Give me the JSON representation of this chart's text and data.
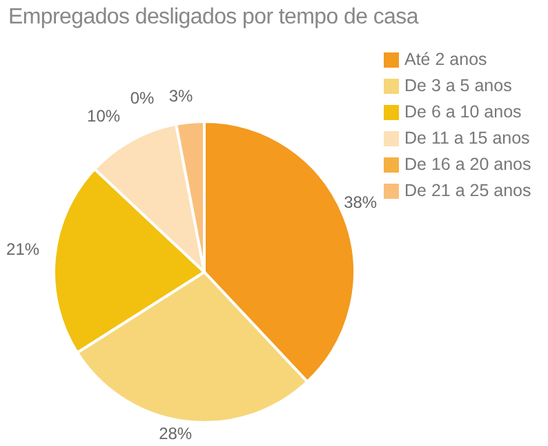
{
  "chart_data": {
    "type": "pie",
    "title": "Empregados desligados por tempo de casa",
    "categories": [
      "Até 2 anos",
      "De 3 a 5 anos",
      "De 6 a 10 anos",
      "De 11 a 15 anos",
      "De 16 a 20 anos",
      "De 21 a 25 anos"
    ],
    "values": [
      38,
      28,
      21,
      10,
      0,
      3
    ],
    "colors": [
      "#f39a1f",
      "#f7d67a",
      "#f2c00f",
      "#fde0b8",
      "#f5b041",
      "#f9bf7a"
    ],
    "value_labels": [
      "38%",
      "28%",
      "21%",
      "10%",
      "0%",
      "3%"
    ],
    "legend": "right"
  }
}
